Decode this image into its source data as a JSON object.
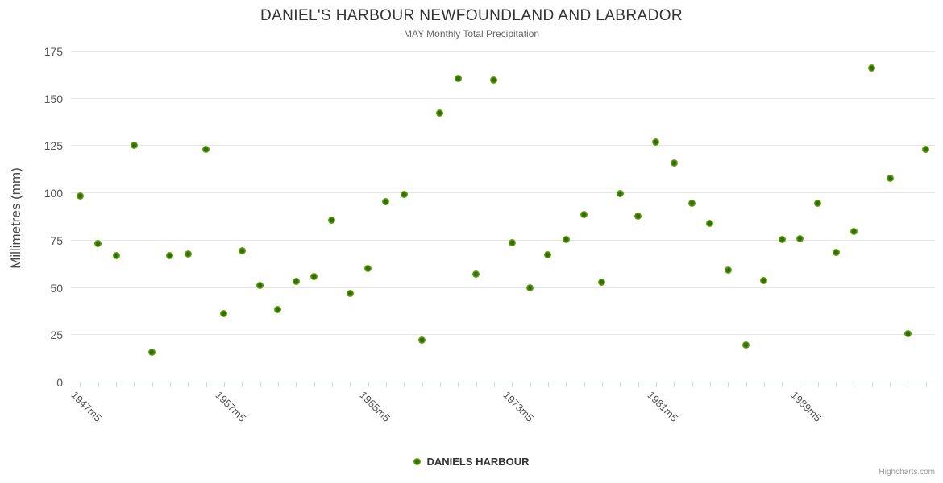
{
  "header": {
    "title": "DANIEL'S HARBOUR NEWFOUNDLAND AND LABRADOR",
    "subtitle": "MAY Monthly Total Precipitation"
  },
  "legend": {
    "series_label": "DANIELS HARBOUR"
  },
  "credits": {
    "label": "Highcharts.com"
  },
  "colors": {
    "background": "#ffffff",
    "title_text": "#333333",
    "subtitle_text": "#666666",
    "axis_label_text": "#555555",
    "grid_line": "#e6e6e6",
    "axis_line": "#ccd6eb",
    "marker_green_outer": "#8ac441",
    "marker_green_mid": "#67a50c",
    "marker_green_core": "#2e6b03",
    "credits_text": "#999999"
  },
  "chart_data": {
    "type": "scatter",
    "title": "DANIEL'S HARBOUR NEWFOUNDLAND AND LABRADOR",
    "subtitle": "MAY Monthly Total Precipitation",
    "ylabel": "Millimetres (mm)",
    "xlabel": "",
    "ylim": [
      0,
      175
    ],
    "yticks": [
      0,
      25,
      50,
      75,
      100,
      125,
      150,
      175
    ],
    "grid": "horizontal",
    "legend_position": "bottom-center",
    "x_label_step": 8,
    "x_label_rotation": 45,
    "x_labels_visible": [
      "1947m5",
      "1957m5",
      "1965m5",
      "1973m5",
      "1981m5",
      "1989m5"
    ],
    "categories": [
      "1947m5",
      "1948m5",
      "1949m5",
      "1950m5",
      "1951m5",
      "1952m5",
      "1953m5",
      "1954m5",
      "1957m5",
      "1958m5",
      "1959m5",
      "1960m5",
      "1961m5",
      "1962m5",
      "1963m5",
      "1964m5",
      "1965m5",
      "1966m5",
      "1967m5",
      "1968m5",
      "1969m5",
      "1970m5",
      "1971m5",
      "1972m5",
      "1973m5",
      "1974m5",
      "1975m5",
      "1976m5",
      "1977m5",
      "1978m5",
      "1979m5",
      "1980m5",
      "1981m5",
      "1982m5",
      "1983m5",
      "1984m5",
      "1985m5",
      "1986m5",
      "1987m5",
      "1988m5",
      "1989m5",
      "1990m5",
      "1991m5",
      "1992m5",
      "1993m5",
      "1994m5",
      "1995m5",
      "1996m5"
    ],
    "series": [
      {
        "name": "DANIELS HARBOUR",
        "values": [
          98,
          73,
          66.5,
          125,
          15.5,
          66.5,
          67.5,
          123,
          36,
          69,
          51,
          38,
          53,
          55.5,
          85.5,
          46.5,
          60,
          95,
          99,
          22,
          142,
          160.5,
          57,
          159.5,
          73.5,
          49.5,
          67,
          75,
          88.5,
          52.5,
          99.5,
          87.5,
          126.5,
          115.5,
          94.5,
          83.5,
          59,
          19.5,
          53.5,
          75,
          75.5,
          94.5,
          68.5,
          79.5,
          166,
          107.5,
          25.5,
          123
        ]
      }
    ]
  }
}
